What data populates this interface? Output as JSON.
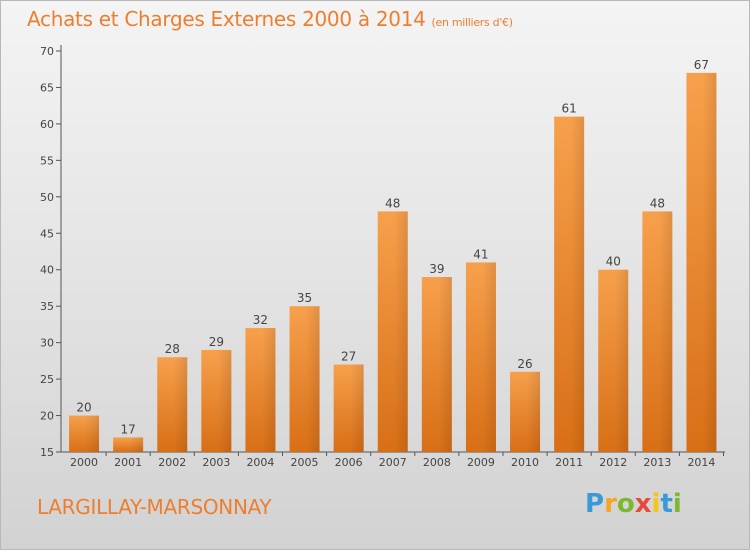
{
  "chart_data": {
    "type": "bar",
    "title": "Achats et Charges Externes 2000 à 2014",
    "subtitle": "(en milliers d'€)",
    "categories": [
      "2000",
      "2001",
      "2002",
      "2003",
      "2004",
      "2005",
      "2006",
      "2007",
      "2008",
      "2009",
      "2010",
      "2011",
      "2012",
      "2013",
      "2014"
    ],
    "values": [
      20,
      17,
      28,
      29,
      32,
      35,
      27,
      48,
      39,
      41,
      26,
      61,
      40,
      48,
      67
    ],
    "ylim": [
      15,
      70
    ],
    "yticks": [
      15,
      20,
      25,
      30,
      35,
      40,
      45,
      50,
      55,
      60,
      65,
      70
    ],
    "grid": false,
    "bar_color": "#f08a2e"
  },
  "place_name": "LARGILLAY-MARSONNAY",
  "logo": {
    "letters": [
      "P",
      "r",
      "o",
      "x",
      "i",
      "t",
      "i"
    ],
    "colors": [
      "#3a9ad9",
      "#f5a623",
      "#7cb82f",
      "#e64a3c",
      "#f5c518",
      "#3a9ad9",
      "#7cb82f"
    ]
  }
}
